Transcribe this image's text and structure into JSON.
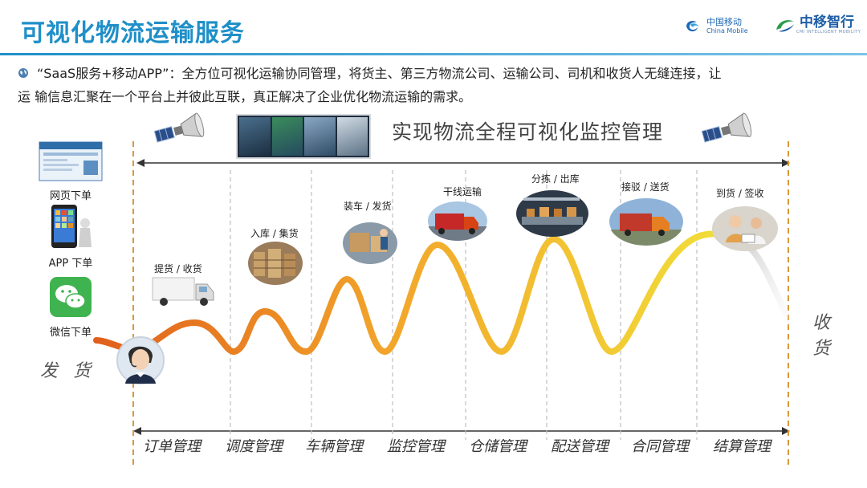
{
  "header": {
    "title": "可视化物流运输服务",
    "logo_china_mobile_cn": "中国移动",
    "logo_china_mobile_en": "China Mobile",
    "logo_zhongyi_cn": "中移智行",
    "logo_zhongyi_en": "CMI INTELLIGENT MOBILITY"
  },
  "intro": {
    "line1": "“SaaS服务+移动APP”：全方位可视化运输协同管理，将货主、第三方物流公司、运输公司、司机和收货人无缝连接，让",
    "line2": "运  输信息汇聚在一个平台上并彼此互联，真正解决了企业优化物流运输的需求。"
  },
  "monitor_title": "实现物流全程可视化监控管理",
  "order_channels": [
    {
      "label": "网页下单",
      "icon": "web-page-icon"
    },
    {
      "label": "APP 下单",
      "icon": "mobile-app-icon"
    },
    {
      "label": "微信下单",
      "icon": "wechat-icon"
    }
  ],
  "send_label": "发 货",
  "receive_label": "收 货",
  "stages": [
    {
      "label": "提货 / 收货",
      "icon": "truck-icon"
    },
    {
      "label": "入库 / 集货",
      "icon": "warehouse-icon"
    },
    {
      "label": "装车 / 发货",
      "icon": "loading-icon"
    },
    {
      "label": "干线运输",
      "icon": "highway-truck-icon"
    },
    {
      "label": "分拣 / 出库",
      "icon": "sorting-icon"
    },
    {
      "label": "接驳 / 送货",
      "icon": "delivery-truck-icon"
    },
    {
      "label": "到货 / 签收",
      "icon": "signing-icon"
    }
  ],
  "management": [
    "订单管理",
    "调度管理",
    "车辆管理",
    "监控管理",
    "仓储管理",
    "配送管理",
    "合同管理",
    "结算管理"
  ],
  "colors": {
    "title_blue": "#1f8fc8",
    "wave_start": "#e0601c",
    "wave_mid": "#f2a52a",
    "wave_end": "#f1e13a",
    "dashed_gold": "#d89a3c"
  }
}
